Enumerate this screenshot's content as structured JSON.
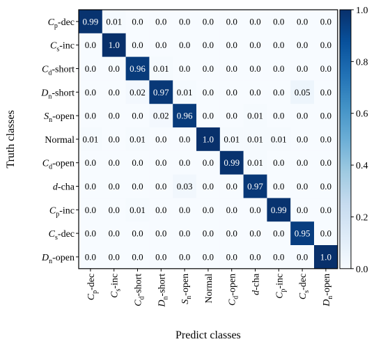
{
  "chart_data": {
    "type": "heatmap",
    "xlabel": "Predict classes",
    "ylabel": "Truth classes",
    "classes": [
      {
        "main": "C",
        "sub": "p",
        "rest": "-dec"
      },
      {
        "main": "C",
        "sub": "s",
        "rest": "-inc"
      },
      {
        "main": "C",
        "sub": "d",
        "rest": "-short"
      },
      {
        "main": "D",
        "sub": "n",
        "rest": "-short"
      },
      {
        "main": "S",
        "sub": "n",
        "rest": "-open"
      },
      {
        "main": "",
        "sub": "",
        "rest": "Normal"
      },
      {
        "main": "C",
        "sub": "d",
        "rest": "-open"
      },
      {
        "main": "d",
        "sub": "",
        "rest": "-cha"
      },
      {
        "main": "C",
        "sub": "p",
        "rest": "-inc"
      },
      {
        "main": "C",
        "sub": "s",
        "rest": "-dec"
      },
      {
        "main": "D",
        "sub": "n",
        "rest": "-open"
      }
    ],
    "values": [
      [
        "0.99",
        "0.01",
        "0.0",
        "0.0",
        "0.0",
        "0.0",
        "0.0",
        "0.0",
        "0.0",
        "0.0",
        "0.0"
      ],
      [
        "0.0",
        "1.0",
        "0.0",
        "0.0",
        "0.0",
        "0.0",
        "0.0",
        "0.0",
        "0.0",
        "0.0",
        "0.0"
      ],
      [
        "0.0",
        "0.0",
        "0.96",
        "0.01",
        "0.0",
        "0.0",
        "0.0",
        "0.0",
        "0.0",
        "0.0",
        "0.0"
      ],
      [
        "0.0",
        "0.0",
        "0.02",
        "0.97",
        "0.01",
        "0.0",
        "0.0",
        "0.0",
        "0.0",
        "0.05",
        "0.0"
      ],
      [
        "0.0",
        "0.0",
        "0.0",
        "0.02",
        "0.96",
        "0.0",
        "0.0",
        "0.01",
        "0.0",
        "0.0",
        "0.0"
      ],
      [
        "0.01",
        "0.0",
        "0.01",
        "0.0",
        "0.0",
        "1.0",
        "0.01",
        "0.01",
        "0.01",
        "0.0",
        "0.0"
      ],
      [
        "0.0",
        "0.0",
        "0.0",
        "0.0",
        "0.0",
        "0.0",
        "0.99",
        "0.01",
        "0.0",
        "0.0",
        "0.0"
      ],
      [
        "0.0",
        "0.0",
        "0.0",
        "0.0",
        "0.03",
        "0.0",
        "0.0",
        "0.97",
        "0.0",
        "0.0",
        "0.0"
      ],
      [
        "0.0",
        "0.0",
        "0.01",
        "0.0",
        "0.0",
        "0.0",
        "0.0",
        "0.0",
        "0.99",
        "0.0",
        "0.0"
      ],
      [
        "0.0",
        "0.0",
        "0.0",
        "0.0",
        "0.0",
        "0.0",
        "0.0",
        "0.0",
        "0.0",
        "0.95",
        "0.0"
      ],
      [
        "0.0",
        "0.0",
        "0.0",
        "0.0",
        "0.0",
        "0.0",
        "0.0",
        "0.0",
        "0.0",
        "0.0",
        "1.0"
      ]
    ],
    "colorbar": {
      "range": [
        0.0,
        1.0
      ],
      "ticks": [
        "0.0",
        "0.2",
        "0.4",
        "0.6",
        "0.8",
        "1.0"
      ],
      "color_low": "#f7fbff",
      "color_high": "#08306b"
    }
  }
}
